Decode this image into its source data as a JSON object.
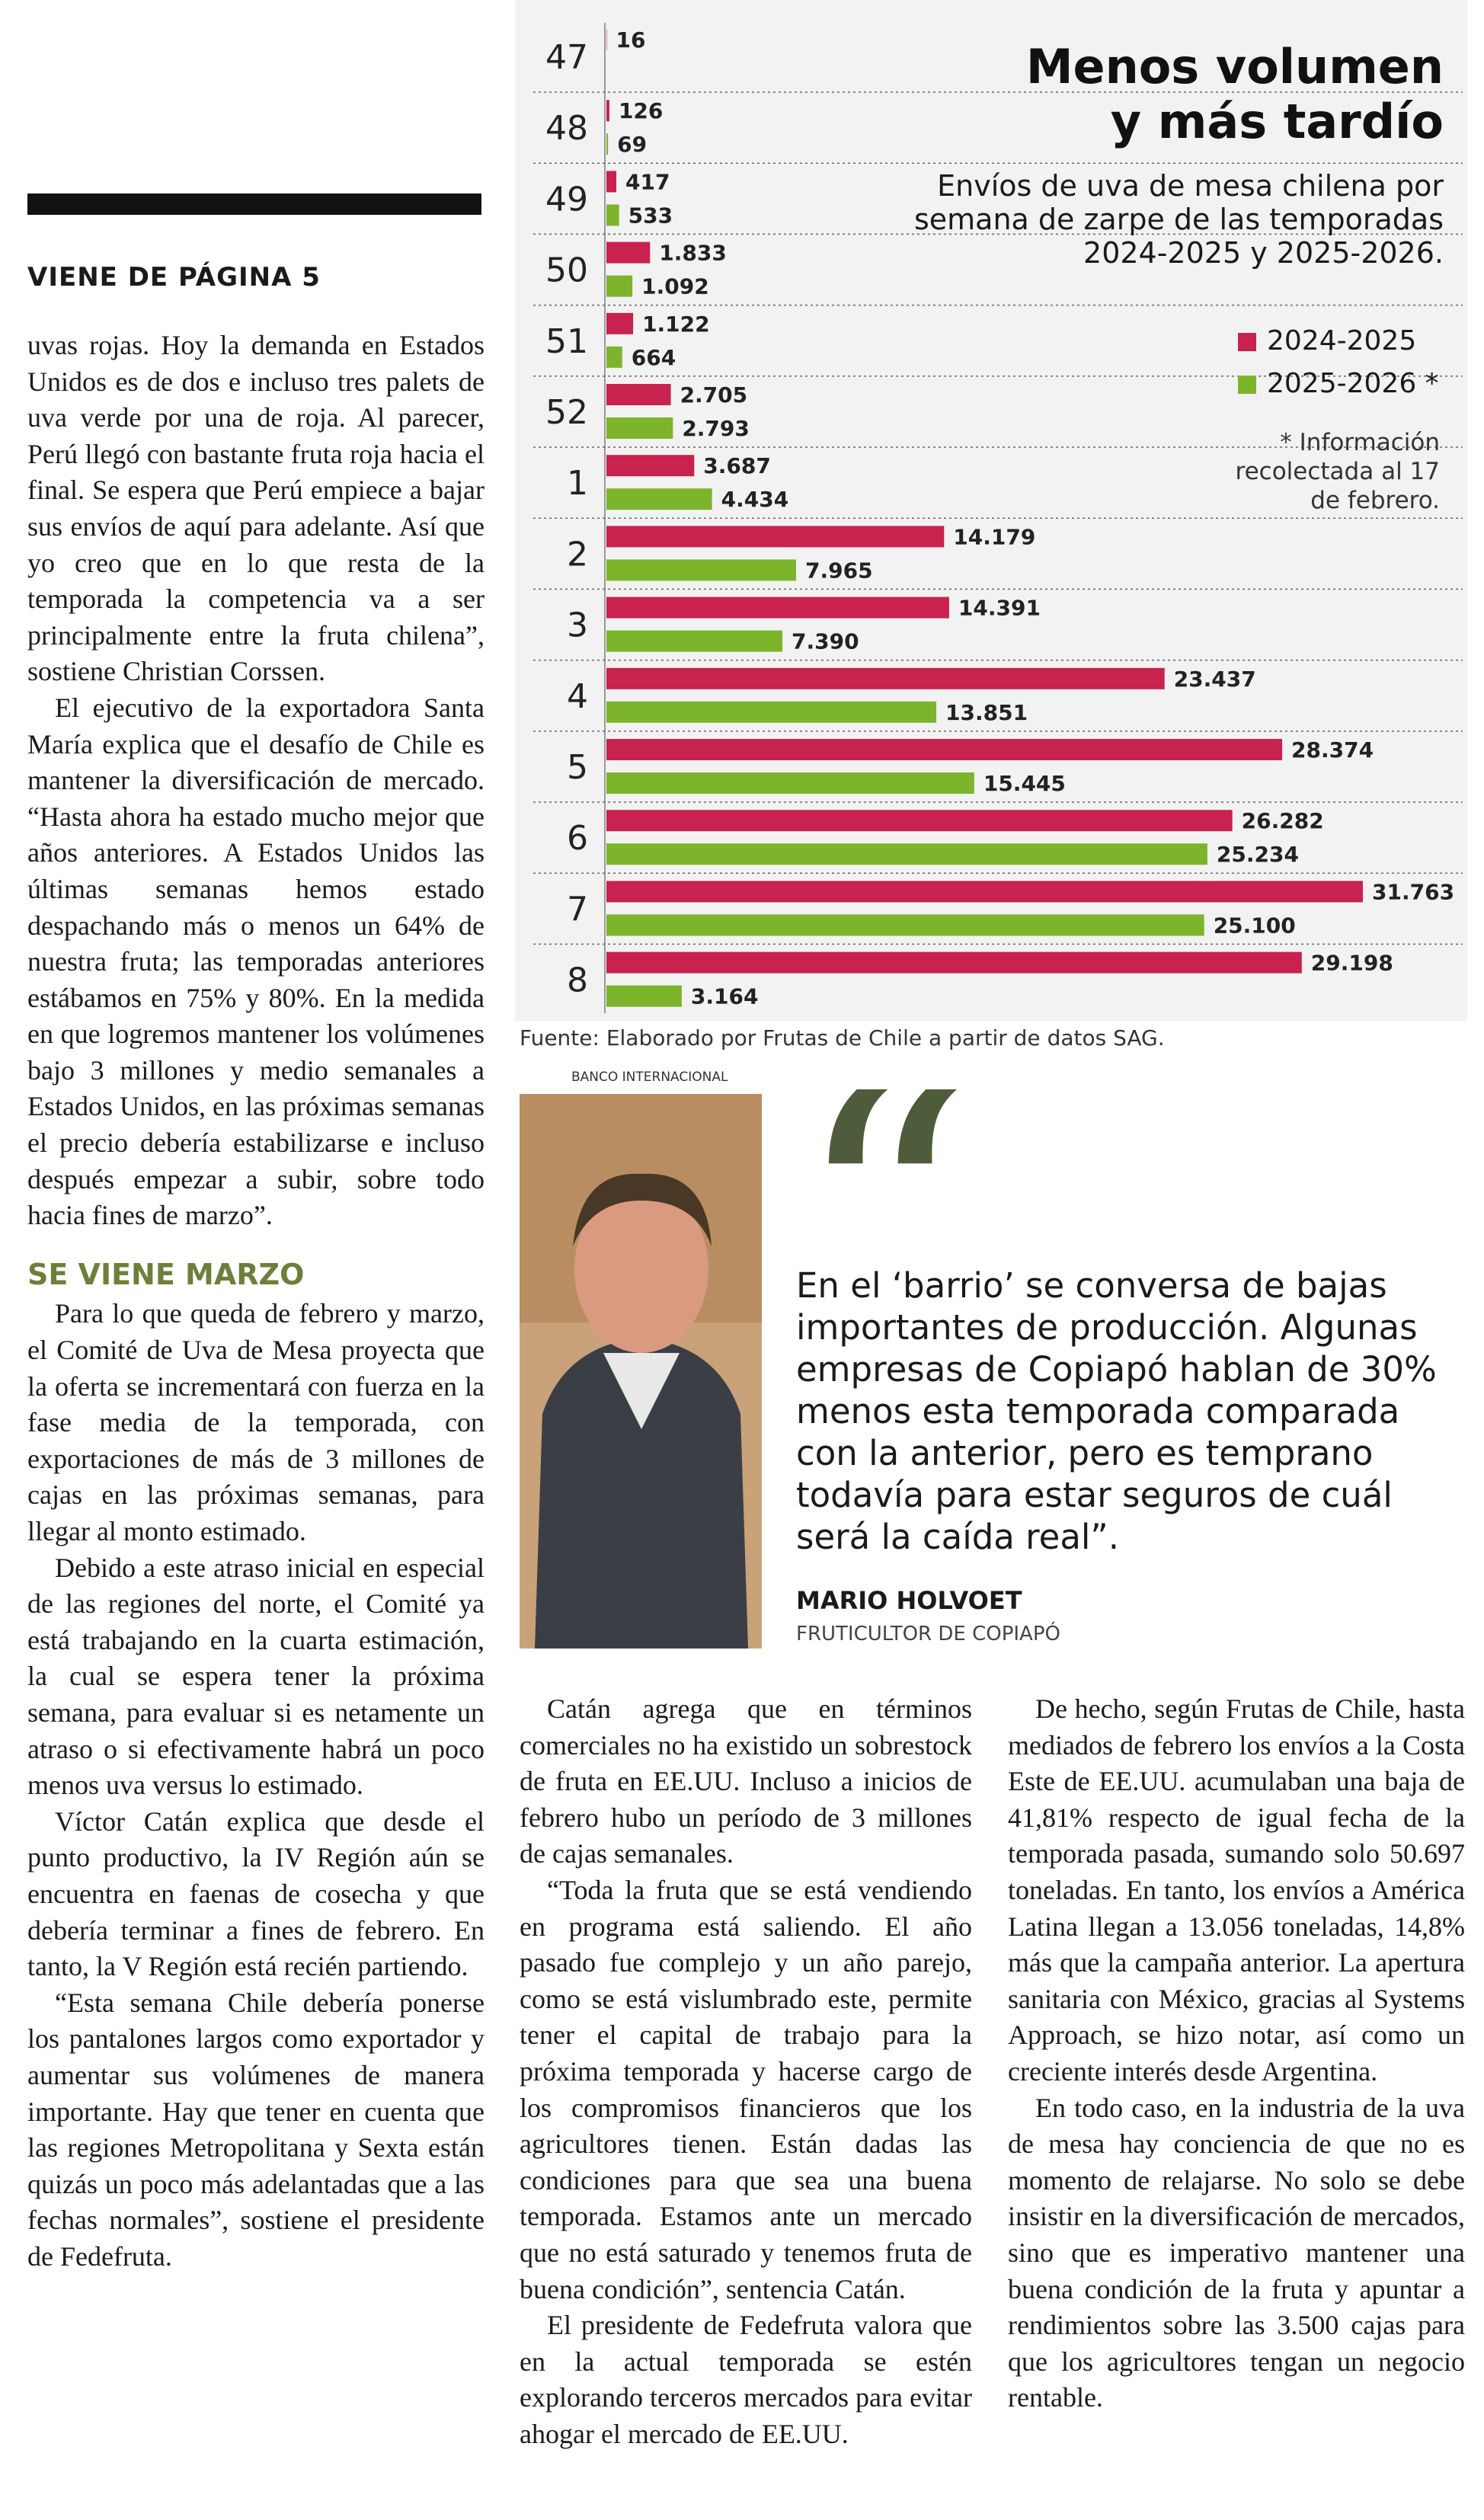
{
  "chart_data": {
    "type": "bar",
    "orientation": "horizontal",
    "title": "Menos volumen y más tardío",
    "subtitle": "Envíos de uva de mesa chilena por semana de zarpe de las temporadas 2024-2025 y 2025-2026.",
    "note": "* Información recolectada al 17 de febrero.",
    "source": "Fuente: Elaborado por Frutas de Chile a partir de datos SAG.",
    "legend": "right",
    "categories": [
      "47",
      "48",
      "49",
      "50",
      "51",
      "52",
      "1",
      "2",
      "3",
      "4",
      "5",
      "6",
      "7",
      "8"
    ],
    "series": [
      {
        "name": "2024-2025",
        "color": "#c8224f",
        "values": [
          16,
          126,
          417,
          1833,
          1122,
          2705,
          3687,
          14179,
          14391,
          23437,
          28374,
          26282,
          31763,
          29198
        ],
        "value_labels": [
          "16",
          "126",
          "417",
          "1.833",
          "1.122",
          "2.705",
          "3.687",
          "14.179",
          "14.391",
          "23.437",
          "28.374",
          "26.282",
          "31.763",
          "29.198"
        ]
      },
      {
        "name": "2025-2026 *",
        "color": "#7cb52b",
        "values": [
          null,
          69,
          533,
          1092,
          664,
          2793,
          4434,
          7965,
          7390,
          13851,
          15445,
          25234,
          25100,
          3164
        ],
        "value_labels": [
          null,
          "69",
          "533",
          "1.092",
          "664",
          "2.793",
          "4.434",
          "7.965",
          "7.390",
          "13.851",
          "15.445",
          "25.234",
          "25.100",
          "3.164"
        ]
      }
    ]
  },
  "article": {
    "kicker": "VIENE DE PÁGINA 5",
    "col1": [
      "uvas rojas. Hoy la demanda en Estados Unidos es de dos e incluso tres palets de uva verde por una de roja. Al parecer, Perú llegó con bastante fruta roja hacia el final. Se espera que Perú empiece a bajar sus envíos de aquí para adelante. Así que yo creo que en lo que resta de la temporada la competencia va a ser principalmente entre la fruta chilena”, sostiene Christian Corssen.",
      "El ejecutivo de la exportadora Santa María explica que el desafío de Chile es mantener la diversificación de mercado. “Hasta ahora ha estado mucho mejor que años anteriores. A Estados Unidos las últimas semanas hemos estado despachando más o menos un 64% de nuestra fruta; las temporadas anteriores estábamos en 75% y 80%. En la medida en que logremos mantener los volúmenes bajo 3 millones y medio semanales a Estados Unidos, en las próximas semanas el precio debería estabilizarse e incluso después empezar a subir, sobre todo hacia fines de marzo”."
    ],
    "subhead": "SE VIENE MARZO",
    "col1b": [
      "Para lo que queda de febrero y marzo, el Comité de Uva de Mesa proyecta que la oferta se incrementará con fuerza en la fase media de la temporada, con exportaciones de más de 3 millones de cajas en las próximas semanas, para llegar al monto estimado.",
      "Debido a este atraso inicial en especial de las regiones del norte, el Comité ya está trabajando en la cuarta estimación, la cual se espera tener la próxima semana, para evaluar si es netamente un atraso o si efectivamente habrá un poco menos uva versus lo estimado.",
      "Víctor Catán explica que desde el punto productivo, la IV Región aún se encuentra en faenas de cosecha y que debería terminar a fines de febrero. En tanto, la V Región está recién partiendo.",
      "“Esta semana Chile debería ponerse los pantalones largos como exportador y aumentar sus volúmenes de manera importante. Hay que tener en cuenta que las regiones Metropolitana y Sexta están quizás un poco más adelantadas que a las fechas normales”, sostiene el presidente de Fedefruta."
    ],
    "col2": [
      "Catán agrega que en términos comerciales no ha existido un sobrestock de fruta en EE.UU. Incluso a inicios de febrero hubo un período de 3 millones de cajas semanales.",
      "“Toda la fruta que se está vendiendo en programa está saliendo. El año pasado fue complejo y un año parejo, como se está vislumbrado este, permite tener el capital de trabajo para la próxima temporada y hacerse cargo de los compromisos financieros que los agricultores tienen. Están dadas las condiciones para que sea una buena temporada. Estamos ante un mercado que no está saturado y tenemos fruta de buena condición”, sentencia Catán.",
      "El presidente de Fedefruta valora que en la actual temporada se estén explorando terceros mercados para evitar ahogar el mercado de EE.UU."
    ],
    "col3": [
      "De hecho, según Frutas de Chile, hasta mediados de febrero los envíos a la Costa Este de EE.UU. acumulaban una baja de 41,81% respecto de igual fecha de la temporada pasada, sumando solo 50.697 toneladas. En tanto, los envíos a América Latina llegan a 13.056 toneladas, 14,8% más que la campaña anterior. La apertura sanitaria con México, gracias al Systems Approach, se hizo notar, así como un creciente interés desde Argentina.",
      "En todo caso, en la industria de la uva de mesa hay conciencia de que no es momento de relajarse. No solo se debe insistir en la diversificación de mercados, sino que es imperativo mantener una buena condición de la fruta y apuntar a rendimientos sobre las 3.500 cajas para que los agricultores tengan un negocio rentable."
    ]
  },
  "quote": {
    "photo_credit": "BANCO INTERNACIONAL",
    "text": "En el ‘barrio’ se conversa de bajas importantes de producción. Algunas empresas de Copiapó hablan de 30% menos esta temporada comparada con la anterior, pero es temprano todavía para estar seguros de cuál será la caída real”.",
    "name": "MARIO HOLVOET",
    "role": "FRUTICULTOR DE COPIAPÓ"
  }
}
